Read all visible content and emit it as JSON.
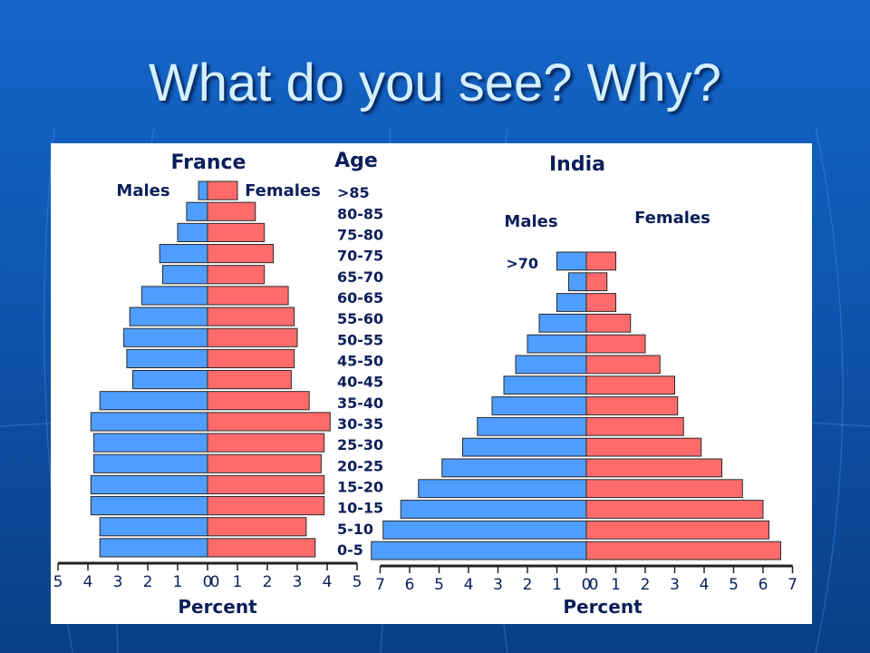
{
  "slide": {
    "title": "What do you see?  Why?"
  },
  "colors": {
    "male": "#4f9eff",
    "female": "#ff6b6b",
    "chart_bg": "#ffffff",
    "text": "#0b1f5a"
  },
  "chart_data": [
    {
      "type": "bar",
      "title": "France",
      "age_header": "Age",
      "left_label": "Males",
      "right_label": "Females",
      "xlabel": "Percent",
      "categories": [
        ">85",
        "80-85",
        "75-80",
        "70-75",
        "65-70",
        "60-65",
        "55-60",
        "50-55",
        "45-50",
        "40-45",
        "35-40",
        "30-35",
        "25-30",
        "20-25",
        "15-20",
        "10-15",
        "5-10",
        "0-5"
      ],
      "series": [
        {
          "name": "Males",
          "values": [
            0.3,
            0.7,
            1.0,
            1.6,
            1.5,
            2.2,
            2.6,
            2.8,
            2.7,
            2.5,
            3.6,
            3.9,
            3.8,
            3.8,
            3.9,
            3.9,
            3.6,
            3.6
          ]
        },
        {
          "name": "Females",
          "values": [
            1.0,
            1.6,
            1.9,
            2.2,
            1.9,
            2.7,
            2.9,
            3.0,
            2.9,
            2.8,
            3.4,
            4.1,
            3.9,
            3.8,
            3.9,
            3.9,
            3.3,
            3.6
          ]
        }
      ],
      "x_left_ticks": [
        "5",
        "4",
        "3",
        "2",
        "1",
        "0"
      ],
      "x_right_ticks": [
        "0",
        "1",
        "2",
        "3",
        "4",
        "5"
      ],
      "xlim": [
        0,
        5
      ]
    },
    {
      "type": "bar",
      "title": "India",
      "left_label": "Males",
      "right_label": "Females",
      "xlabel": "Percent",
      "categories": [
        ">70",
        "",
        "",
        "",
        "",
        "",
        "",
        "",
        "",
        "",
        "",
        "",
        "",
        "",
        ""
      ],
      "series": [
        {
          "name": "Males",
          "values": [
            1.0,
            0.6,
            1.0,
            1.6,
            2.0,
            2.4,
            2.8,
            3.2,
            3.7,
            4.2,
            4.9,
            5.7,
            6.3,
            6.9,
            7.3
          ]
        },
        {
          "name": "Females",
          "values": [
            1.0,
            0.7,
            1.0,
            1.5,
            2.0,
            2.5,
            3.0,
            3.1,
            3.3,
            3.9,
            4.6,
            5.3,
            6.0,
            6.2,
            6.6
          ]
        }
      ],
      "x_left_ticks": [
        "7",
        "6",
        "5",
        "4",
        "3",
        "2",
        "1",
        "0"
      ],
      "x_right_ticks": [
        "0",
        "1",
        "2",
        "3",
        "4",
        "5",
        "6",
        "7"
      ],
      "xlim": [
        0,
        7
      ]
    }
  ]
}
